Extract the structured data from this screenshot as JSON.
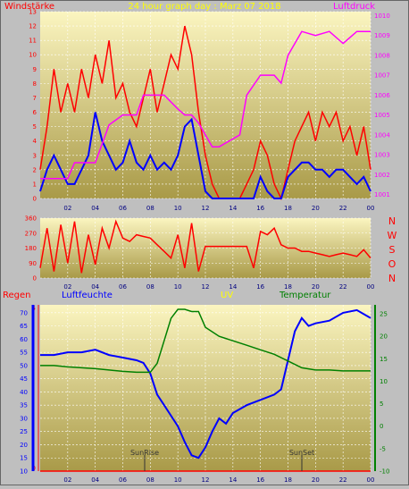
{
  "header": {
    "left": "Windstärke",
    "center": "24 hour graph day : Marz 07 2018",
    "right": "Luftdruck"
  },
  "direction_labels": [
    "N",
    "W",
    "S",
    "O",
    "N"
  ],
  "bottom_header": {
    "regen": "Regen",
    "luftfeuchte": "Luftfeuchte",
    "uv": "UV",
    "temperatur": "Temperatur"
  },
  "annotations": {
    "sunrise": "SunRise",
    "sunset": "SunSet"
  },
  "colors": {
    "background": "#bfbfbf",
    "plot_top": "#fbf5c0",
    "plot_bottom": "#a99a48",
    "red": "#ff0000",
    "blue": "#0000ff",
    "magenta": "#ff00ff",
    "green": "#008000",
    "yellow": "#ffff00",
    "grid": "#ffffff"
  },
  "chart_data": [
    {
      "id": "wind",
      "type": "line",
      "x_ticks": [
        "02",
        "04",
        "06",
        "08",
        "10",
        "12",
        "14",
        "16",
        "18",
        "20",
        "22",
        "00"
      ],
      "y_left_ticks": [
        "0",
        "1",
        "2",
        "3",
        "4",
        "5",
        "6",
        "7",
        "8",
        "9",
        "10",
        "11",
        "12",
        "13"
      ],
      "y_right_ticks": [
        "1001",
        "1002",
        "1003",
        "1004",
        "1005",
        "1006",
        "1007",
        "1008",
        "1009",
        "1010"
      ],
      "ylim_left": [
        0,
        13
      ],
      "ylim_right": [
        1000.8,
        1010.2
      ],
      "xlim": [
        0,
        24
      ],
      "series": [
        {
          "color": "red",
          "axis": "left",
          "x": [
            0,
            0.5,
            1,
            1.5,
            2,
            2.5,
            3,
            3.5,
            4,
            4.5,
            5,
            5.5,
            6,
            6.5,
            7,
            7.5,
            8,
            8.5,
            9,
            9.5,
            10,
            10.5,
            11,
            11.5,
            12,
            12.5,
            13,
            13.5,
            14,
            14.5,
            15,
            15.5,
            16,
            16.5,
            17,
            17.5,
            18,
            18.5,
            19,
            19.5,
            20,
            20.5,
            21,
            21.5,
            22,
            22.5,
            23,
            23.5,
            24
          ],
          "y": [
            2,
            5,
            9,
            6,
            8,
            6,
            9,
            7,
            10,
            8,
            11,
            7,
            8,
            6,
            5,
            7,
            9,
            6,
            8,
            10,
            9,
            12,
            10,
            6,
            3,
            1,
            0,
            0,
            0,
            0,
            1,
            2,
            4,
            3,
            1,
            0,
            2,
            4,
            5,
            6,
            4,
            6,
            5,
            6,
            4,
            5,
            3,
            5,
            2
          ]
        },
        {
          "color": "blue",
          "axis": "left",
          "x": [
            0,
            0.5,
            1,
            1.5,
            2,
            2.5,
            3,
            3.5,
            4,
            4.5,
            5,
            5.5,
            6,
            6.5,
            7,
            7.5,
            8,
            8.5,
            9,
            9.5,
            10,
            10.5,
            11,
            11.5,
            12,
            12.5,
            13,
            13.5,
            14,
            14.5,
            15,
            15.5,
            16,
            16.5,
            17,
            17.5,
            18,
            18.5,
            19,
            19.5,
            20,
            20.5,
            21,
            21.5,
            22,
            22.5,
            23,
            23.5,
            24
          ],
          "y": [
            0.5,
            2,
            3,
            2,
            1,
            1,
            2,
            3,
            6,
            4,
            3,
            2,
            2.5,
            4,
            2.5,
            2,
            3,
            2,
            2.5,
            2,
            3,
            5,
            5.5,
            3,
            0.5,
            0,
            0,
            0,
            0,
            0,
            0,
            0,
            1.5,
            0.5,
            0,
            0,
            1.5,
            2,
            2.5,
            2.5,
            2,
            2,
            1.5,
            2,
            2,
            1.5,
            1,
            1.5,
            0.5
          ]
        },
        {
          "color": "magenta",
          "axis": "right",
          "x": [
            0,
            1,
            2,
            2.5,
            4,
            5,
            6,
            7,
            7.5,
            9,
            10,
            10.5,
            11,
            11.5,
            12,
            12.5,
            13,
            14.5,
            15,
            16,
            17,
            17.5,
            18,
            19,
            20,
            21,
            22,
            23,
            24
          ],
          "y": [
            1001.8,
            1001.8,
            1001.8,
            1002.6,
            1002.6,
            1004.5,
            1005.0,
            1005.0,
            1006.0,
            1006.0,
            1005.3,
            1005.0,
            1005.0,
            1004.6,
            1004.0,
            1003.4,
            1003.4,
            1004.0,
            1006.0,
            1007.0,
            1007.0,
            1006.6,
            1008.0,
            1009.2,
            1009.0,
            1009.2,
            1008.6,
            1009.2,
            1009.2
          ]
        }
      ]
    },
    {
      "id": "direction",
      "type": "line",
      "x_ticks": [
        "02",
        "04",
        "06",
        "08",
        "10",
        "12",
        "14",
        "16",
        "18",
        "20",
        "22",
        "00"
      ],
      "y_ticks": [
        "0",
        "90",
        "180",
        "270",
        "360"
      ],
      "ylim": [
        0,
        360
      ],
      "xlim": [
        0,
        24
      ],
      "series": [
        {
          "color": "red",
          "x": [
            0,
            0.5,
            1,
            1.5,
            2,
            2.5,
            3,
            3.5,
            4,
            4.5,
            5,
            5.5,
            6,
            6.5,
            7,
            7.5,
            8,
            8.5,
            9,
            9.5,
            10,
            10.5,
            11,
            11.5,
            12,
            12.5,
            13,
            13.5,
            14,
            14.5,
            15,
            15.5,
            16,
            16.5,
            17,
            17.5,
            18,
            18.5,
            19,
            19.5,
            20,
            20.5,
            21,
            21.5,
            22,
            22.5,
            23,
            23.5,
            24
          ],
          "y": [
            60,
            300,
            40,
            320,
            90,
            340,
            30,
            260,
            80,
            300,
            180,
            340,
            240,
            220,
            260,
            250,
            240,
            200,
            160,
            120,
            260,
            60,
            330,
            40,
            190,
            190,
            190,
            190,
            190,
            190,
            190,
            60,
            280,
            260,
            300,
            200,
            180,
            180,
            160,
            160,
            150,
            140,
            130,
            140,
            150,
            140,
            130,
            170,
            120
          ]
        }
      ]
    },
    {
      "id": "humidity_temp",
      "type": "line",
      "x_ticks": [
        "02",
        "04",
        "06",
        "08",
        "10",
        "12",
        "14",
        "16",
        "18",
        "20",
        "22",
        "00"
      ],
      "y_left_ticks": [
        "10",
        "15",
        "20",
        "25",
        "30",
        "35",
        "40",
        "45",
        "50",
        "55",
        "60",
        "65",
        "70"
      ],
      "y_regen_ticks": [
        "0",
        "5"
      ],
      "y_right_ticks": [
        "-10",
        "-5",
        "0",
        "5",
        "10",
        "15",
        "20",
        "25"
      ],
      "ylim_left": [
        10,
        73
      ],
      "ylim_right": [
        -10,
        27
      ],
      "xlim": [
        0,
        24
      ],
      "series": [
        {
          "color": "blue",
          "axis": "left",
          "x": [
            0,
            1,
            2,
            3,
            4,
            5,
            6,
            7,
            7.5,
            8,
            8.5,
            9,
            9.5,
            10,
            10.5,
            11,
            11.5,
            12,
            12.5,
            13,
            13.5,
            14,
            15,
            16,
            17,
            17.5,
            18,
            18.5,
            19,
            19.5,
            20,
            21,
            22,
            23,
            24
          ],
          "y": [
            54,
            54,
            55,
            55,
            56,
            54,
            53,
            52,
            51,
            47,
            39,
            35,
            31,
            27,
            21,
            16,
            15,
            19,
            25,
            30,
            28,
            32,
            35,
            37,
            39,
            41,
            52,
            63,
            68,
            65,
            66,
            67,
            70,
            71,
            68
          ]
        },
        {
          "color": "green",
          "axis": "right",
          "x": [
            0,
            1,
            2,
            3,
            4,
            5,
            6,
            7,
            8,
            8.5,
            9,
            9.5,
            10,
            10.5,
            11,
            11.5,
            12,
            13,
            14,
            15,
            16,
            17,
            18,
            19,
            20,
            21,
            22,
            23,
            24
          ],
          "y": [
            13.5,
            13.5,
            13.2,
            13,
            12.8,
            12.5,
            12.2,
            12,
            12,
            14,
            19,
            24,
            26,
            26,
            25.5,
            25.5,
            22,
            20,
            19,
            18,
            17,
            16,
            14.5,
            13,
            12.5,
            12.5,
            12.3,
            12.3,
            12.3
          ]
        },
        {
          "color": "red",
          "axis": "regen",
          "x": [
            0,
            24
          ],
          "y": [
            0,
            0
          ]
        }
      ]
    }
  ]
}
